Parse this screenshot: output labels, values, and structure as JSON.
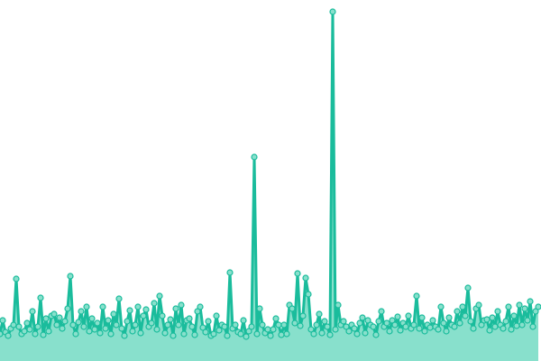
{
  "chart_data": {
    "type": "area",
    "title": "",
    "xlabel": "",
    "ylabel": "",
    "grid": false,
    "legend": "none",
    "axes_visible": false,
    "ylim": [
      0,
      400
    ],
    "colors": {
      "line": "#1abc9c",
      "fill": "#88e0cc",
      "marker_fill": "#88e0cc",
      "marker_stroke": "#1abc9c"
    },
    "series": [
      {
        "values": [
          30,
          45,
          32,
          28,
          36,
          40,
          91,
          38,
          30,
          33,
          42,
          35,
          55,
          30,
          38,
          70,
          29,
          47,
          33,
          50,
          52,
          40,
          48,
          36,
          44,
          58,
          94,
          40,
          30,
          43,
          55,
          38,
          60,
          33,
          47,
          35,
          42,
          31,
          60,
          36,
          45,
          30,
          52,
          40,
          69,
          36,
          28,
          44,
          56,
          33,
          40,
          60,
          31,
          50,
          57,
          38,
          42,
          64,
          35,
          72,
          50,
          31,
          40,
          46,
          28,
          58,
          40,
          62,
          30,
          45,
          47,
          38,
          29,
          55,
          60,
          37,
          32,
          44,
          28,
          30,
          50,
          34,
          40,
          38,
          28,
          98,
          36,
          40,
          32,
          30,
          45,
          27,
          33,
          38,
          226,
          30,
          58,
          40,
          31,
          35,
          28,
          35,
          47,
          40,
          29,
          40,
          30,
          62,
          58,
          42,
          97,
          39,
          50,
          92,
          74,
          35,
          30,
          40,
          52,
          31,
          44,
          38,
          29,
          387,
          35,
          62,
          40,
          44,
          38,
          33,
          40,
          36,
          30,
          42,
          48,
          31,
          45,
          40,
          38,
          29,
          44,
          55,
          38,
          42,
          33,
          45,
          40,
          49,
          34,
          42,
          38,
          50,
          36,
          40,
          72,
          36,
          48,
          33,
          40,
          37,
          45,
          38,
          35,
          60,
          42,
          33,
          48,
          40,
          38,
          55,
          42,
          60,
          50,
          81,
          44,
          36,
          58,
          62,
          40,
          45,
          46,
          34,
          48,
          38,
          55,
          40,
          36,
          44,
          60,
          35,
          50,
          39,
          62,
          40,
          58,
          45,
          66,
          38,
          55,
          60
        ]
      }
    ]
  }
}
